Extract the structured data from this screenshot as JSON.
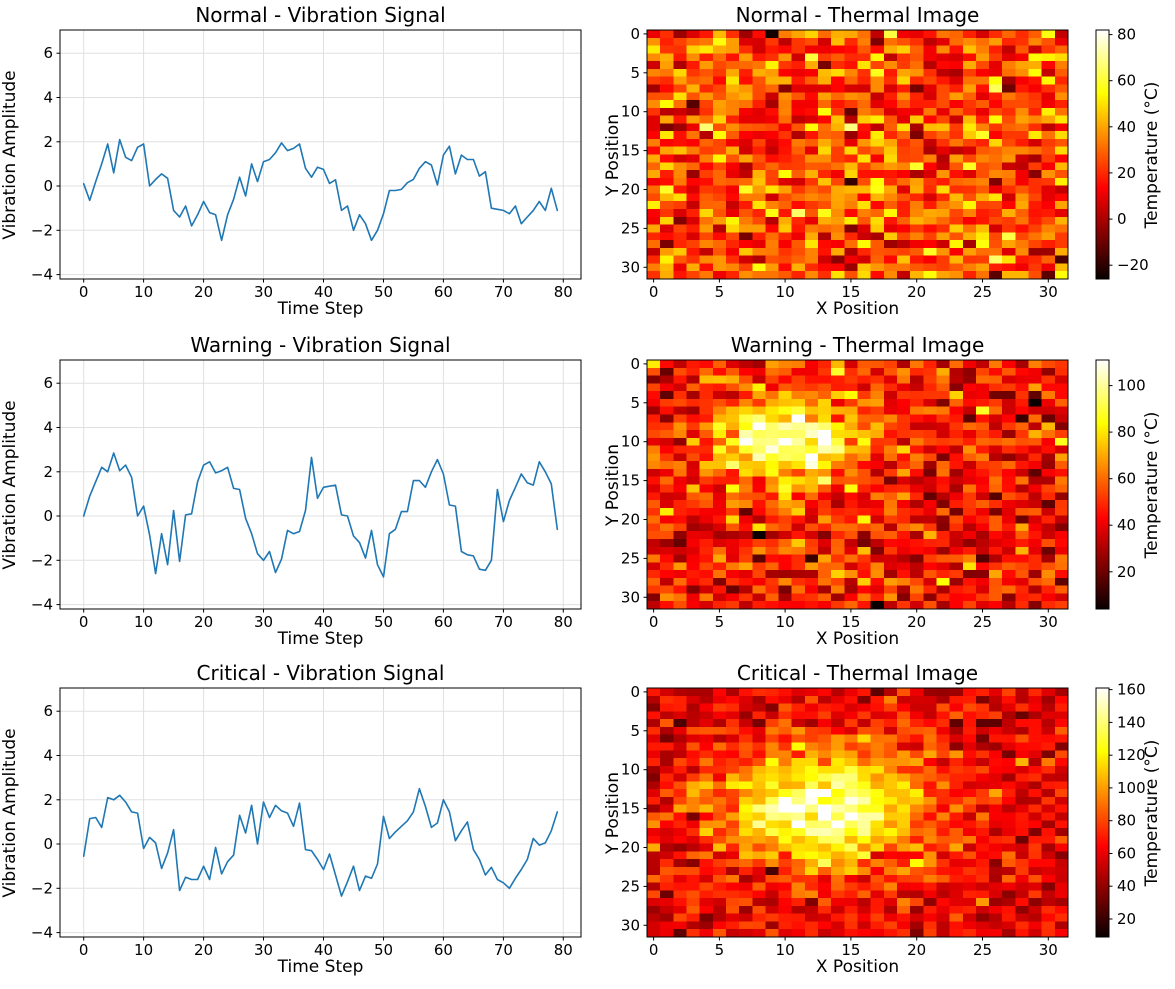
{
  "chart_data": [
    {
      "type": "line",
      "panel": "normal-vibration",
      "title": "Normal - Vibration Signal",
      "xlabel": "Time Step",
      "ylabel": "Vibration Amplitude",
      "xlim": [
        -3.95,
        82.95
      ],
      "ylim": [
        -4.2,
        7.05
      ],
      "xticks": [
        0,
        10,
        20,
        30,
        40,
        50,
        60,
        70,
        80
      ],
      "yticks": [
        -4,
        -2,
        0,
        2,
        4,
        6
      ],
      "grid": true,
      "line_color": "#1f77b4",
      "x_step": 1,
      "values": [
        0.1,
        -0.65,
        0.2,
        1.0,
        1.9,
        0.6,
        2.1,
        1.3,
        1.15,
        1.75,
        1.9,
        0.0,
        0.3,
        0.55,
        0.35,
        -1.1,
        -1.4,
        -0.9,
        -1.8,
        -1.3,
        -0.7,
        -1.2,
        -1.3,
        -2.45,
        -1.3,
        -0.6,
        0.4,
        -0.45,
        1.0,
        0.2,
        1.1,
        1.2,
        1.5,
        1.95,
        1.6,
        1.7,
        1.9,
        0.8,
        0.4,
        0.85,
        0.75,
        0.12,
        0.28,
        -1.1,
        -0.9,
        -2.0,
        -1.3,
        -1.7,
        -2.45,
        -2.0,
        -1.25,
        -0.2,
        -0.2,
        -0.15,
        0.15,
        0.3,
        0.8,
        1.1,
        0.95,
        0.05,
        1.4,
        1.8,
        0.55,
        1.4,
        1.2,
        1.2,
        0.45,
        0.65,
        -1.0,
        -1.05,
        -1.1,
        -1.25,
        -0.9,
        -1.7,
        -1.4,
        -1.1,
        -0.7,
        -1.1,
        -0.1,
        -1.1
      ]
    },
    {
      "type": "heatmap",
      "panel": "normal-thermal",
      "title": "Normal - Thermal Image",
      "xlabel": "X Position",
      "ylabel": "Y Position",
      "xticks": [
        0,
        5,
        10,
        15,
        20,
        25,
        30
      ],
      "yticks": [
        0,
        5,
        10,
        15,
        20,
        25,
        30
      ],
      "grid_size": 32,
      "origin": "upper",
      "colormap": "hot",
      "vmin": -26,
      "vmax": 82,
      "colorbar_label": "Temperature (°C)",
      "colorbar_ticks": [
        -20,
        0,
        20,
        40,
        60,
        80
      ],
      "base_temp": 25,
      "noise_std": 15,
      "hotspot": {
        "x": 16,
        "y": 16,
        "amplitude": 0,
        "sigma": 5
      },
      "seed": 42
    },
    {
      "type": "line",
      "panel": "warning-vibration",
      "title": "Warning - Vibration Signal",
      "xlabel": "Time Step",
      "ylabel": "Vibration Amplitude",
      "xlim": [
        -3.95,
        82.95
      ],
      "ylim": [
        -4.2,
        7.05
      ],
      "xticks": [
        0,
        10,
        20,
        30,
        40,
        50,
        60,
        70,
        80
      ],
      "yticks": [
        -4,
        -2,
        0,
        2,
        4,
        6
      ],
      "grid": true,
      "line_color": "#1f77b4",
      "x_step": 1,
      "values": [
        0.0,
        0.9,
        1.55,
        2.2,
        2.0,
        2.85,
        2.05,
        2.3,
        1.75,
        0.0,
        0.45,
        -0.85,
        -2.6,
        -0.8,
        -2.2,
        0.25,
        -2.05,
        0.05,
        0.1,
        1.55,
        2.3,
        2.45,
        1.95,
        2.05,
        2.2,
        1.25,
        1.2,
        -0.1,
        -0.8,
        -1.7,
        -2.0,
        -1.6,
        -2.55,
        -1.95,
        -0.65,
        -0.8,
        -0.7,
        0.25,
        2.65,
        0.8,
        1.3,
        1.35,
        1.4,
        0.05,
        0.0,
        -0.9,
        -1.2,
        -1.9,
        -0.65,
        -2.2,
        -2.75,
        -0.8,
        -0.6,
        0.2,
        0.2,
        1.6,
        1.6,
        1.3,
        2.0,
        2.55,
        1.9,
        0.5,
        0.45,
        -1.6,
        -1.75,
        -1.8,
        -2.4,
        -2.45,
        -2.0,
        1.2,
        -0.25,
        0.7,
        1.3,
        1.9,
        1.5,
        1.4,
        2.45,
        2.0,
        1.45,
        -0.6
      ]
    },
    {
      "type": "heatmap",
      "panel": "warning-thermal",
      "title": "Warning - Thermal Image",
      "xlabel": "X Position",
      "ylabel": "Y Position",
      "xticks": [
        0,
        5,
        10,
        15,
        20,
        25,
        30
      ],
      "yticks": [
        0,
        5,
        10,
        15,
        20,
        25,
        30
      ],
      "grid_size": 32,
      "origin": "upper",
      "colormap": "hot",
      "vmin": 4,
      "vmax": 111,
      "colorbar_label": "Temperature (°C)",
      "colorbar_ticks": [
        20,
        40,
        60,
        80,
        100
      ],
      "base_temp": 45,
      "noise_std": 13,
      "hotspot": {
        "x": 10,
        "y": 9.5,
        "amplitude": 62,
        "sigma": 4
      },
      "seed": 7
    },
    {
      "type": "line",
      "panel": "critical-vibration",
      "title": "Critical - Vibration Signal",
      "xlabel": "Time Step",
      "ylabel": "Vibration Amplitude",
      "xlim": [
        -3.95,
        82.95
      ],
      "ylim": [
        -4.2,
        7.05
      ],
      "xticks": [
        0,
        10,
        20,
        30,
        40,
        50,
        60,
        70,
        80
      ],
      "yticks": [
        -4,
        -2,
        0,
        2,
        4,
        6
      ],
      "grid": true,
      "line_color": "#1f77b4",
      "x_step": 1,
      "values": [
        -0.55,
        1.15,
        1.2,
        0.75,
        2.1,
        2.0,
        2.2,
        1.9,
        1.45,
        1.4,
        -0.2,
        0.3,
        0.05,
        -1.1,
        -0.4,
        0.65,
        -2.1,
        -1.5,
        -1.6,
        -1.6,
        -1.0,
        -1.6,
        -0.15,
        -1.35,
        -0.8,
        -0.5,
        1.3,
        0.5,
        1.75,
        0.0,
        1.9,
        1.2,
        1.75,
        1.5,
        1.4,
        0.8,
        1.85,
        -0.25,
        -0.3,
        -0.7,
        -1.15,
        -0.45,
        -1.4,
        -2.35,
        -1.7,
        -1.0,
        -2.1,
        -1.45,
        -1.55,
        -0.9,
        1.25,
        0.25,
        0.55,
        0.8,
        1.05,
        1.45,
        2.5,
        1.7,
        0.75,
        0.95,
        2.0,
        1.45,
        0.15,
        0.6,
        1.0,
        -0.25,
        -0.7,
        -1.4,
        -1.05,
        -1.6,
        -1.75,
        -2.0,
        -1.55,
        -1.15,
        -0.7,
        0.25,
        -0.05,
        0.05,
        0.6,
        1.45
      ]
    },
    {
      "type": "heatmap",
      "panel": "critical-thermal",
      "title": "Critical - Thermal Image",
      "xlabel": "X Position",
      "ylabel": "Y Position",
      "xticks": [
        0,
        5,
        10,
        15,
        20,
        25,
        30
      ],
      "yticks": [
        0,
        5,
        10,
        15,
        20,
        25,
        30
      ],
      "grid_size": 32,
      "origin": "upper",
      "colormap": "hot",
      "vmin": 9,
      "vmax": 161,
      "colorbar_label": "Temperature (°C)",
      "colorbar_ticks": [
        20,
        40,
        60,
        80,
        100,
        120,
        140,
        160
      ],
      "base_temp": 60,
      "noise_std": 14,
      "hotspot": {
        "x": 13,
        "y": 15,
        "amplitude": 97,
        "sigma": 5.2
      },
      "seed": 1337
    }
  ]
}
